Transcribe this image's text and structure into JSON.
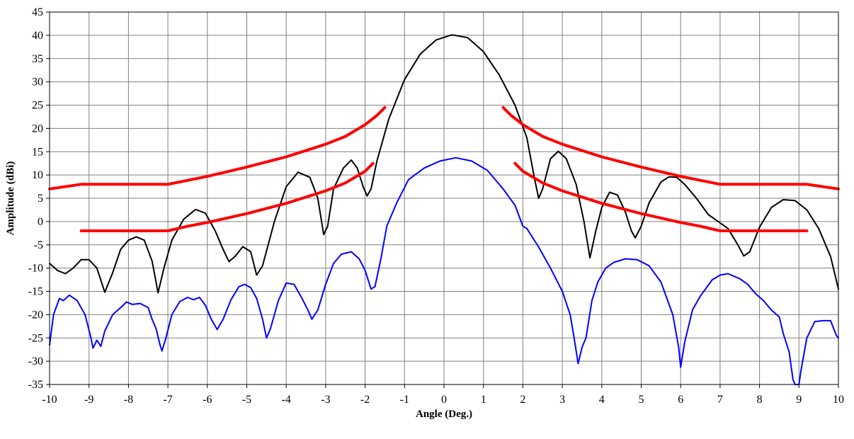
{
  "chart_data": {
    "type": "line",
    "title": "",
    "xlabel": "Angle (Deg.)",
    "ylabel": "Amplitude (dBi)",
    "xlim": [
      -10,
      10
    ],
    "ylim": [
      -35,
      45
    ],
    "x_ticks": [
      "-10",
      "-9",
      "-8",
      "-7",
      "-6",
      "-5",
      "-4",
      "-3",
      "-2",
      "-1",
      "0",
      "1",
      "2",
      "3",
      "4",
      "5",
      "6",
      "7",
      "8",
      "9",
      "10"
    ],
    "y_ticks": [
      "45",
      "40",
      "35",
      "30",
      "25",
      "20",
      "15",
      "10",
      "5",
      "0",
      "-5",
      "-10",
      "-15",
      "-20",
      "-25",
      "-30",
      "-35"
    ],
    "grid": true,
    "legend": "none",
    "series": [
      {
        "color": "#000000",
        "width": 2,
        "points": [
          [
            -10,
            -9
          ],
          [
            -9.8,
            -10.5
          ],
          [
            -9.6,
            -11.2
          ],
          [
            -9.4,
            -10
          ],
          [
            -9.2,
            -8.2
          ],
          [
            -9.0,
            -8.2
          ],
          [
            -8.8,
            -10
          ],
          [
            -8.6,
            -15.2
          ],
          [
            -8.4,
            -11
          ],
          [
            -8.2,
            -6
          ],
          [
            -8.0,
            -4
          ],
          [
            -7.8,
            -3.3
          ],
          [
            -7.6,
            -4
          ],
          [
            -7.4,
            -8.5
          ],
          [
            -7.25,
            -15.3
          ],
          [
            -7.1,
            -10
          ],
          [
            -6.9,
            -4
          ],
          [
            -6.6,
            0.5
          ],
          [
            -6.3,
            2.6
          ],
          [
            -6.05,
            1.8
          ],
          [
            -5.8,
            -2
          ],
          [
            -5.6,
            -6
          ],
          [
            -5.45,
            -8.6
          ],
          [
            -5.3,
            -7.5
          ],
          [
            -5.1,
            -5.4
          ],
          [
            -4.9,
            -6.5
          ],
          [
            -4.75,
            -11.5
          ],
          [
            -4.6,
            -9.5
          ],
          [
            -4.3,
            0
          ],
          [
            -4.0,
            7.5
          ],
          [
            -3.7,
            10.6
          ],
          [
            -3.4,
            9.5
          ],
          [
            -3.2,
            5
          ],
          [
            -3.05,
            -2.8
          ],
          [
            -2.95,
            -1
          ],
          [
            -2.8,
            7
          ],
          [
            -2.55,
            11.5
          ],
          [
            -2.35,
            13.2
          ],
          [
            -2.2,
            11.5
          ],
          [
            -2.05,
            7.5
          ],
          [
            -1.95,
            5.5
          ],
          [
            -1.85,
            7
          ],
          [
            -1.7,
            13
          ],
          [
            -1.4,
            22
          ],
          [
            -1.0,
            30.5
          ],
          [
            -0.6,
            36
          ],
          [
            -0.2,
            39
          ],
          [
            0.2,
            40.1
          ],
          [
            0.6,
            39.5
          ],
          [
            1.0,
            36.5
          ],
          [
            1.4,
            31.5
          ],
          [
            1.8,
            25
          ],
          [
            2.1,
            18
          ],
          [
            2.3,
            9
          ],
          [
            2.4,
            5
          ],
          [
            2.5,
            7
          ],
          [
            2.7,
            13.5
          ],
          [
            2.9,
            15.1
          ],
          [
            3.1,
            13.5
          ],
          [
            3.35,
            8
          ],
          [
            3.55,
            0
          ],
          [
            3.7,
            -7.8
          ],
          [
            3.85,
            -2
          ],
          [
            4.0,
            3
          ],
          [
            4.2,
            6.3
          ],
          [
            4.4,
            5.7
          ],
          [
            4.6,
            2
          ],
          [
            4.75,
            -2
          ],
          [
            4.85,
            -3.5
          ],
          [
            5.0,
            -1
          ],
          [
            5.2,
            4
          ],
          [
            5.5,
            8.5
          ],
          [
            5.7,
            9.6
          ],
          [
            5.9,
            9.5
          ],
          [
            6.1,
            8
          ],
          [
            6.4,
            5
          ],
          [
            6.7,
            1.5
          ],
          [
            7.0,
            -0.3
          ],
          [
            7.2,
            -1.5
          ],
          [
            7.45,
            -5
          ],
          [
            7.6,
            -7.4
          ],
          [
            7.75,
            -6.5
          ],
          [
            8.0,
            -1.2
          ],
          [
            8.3,
            3
          ],
          [
            8.6,
            4.7
          ],
          [
            8.9,
            4.5
          ],
          [
            9.2,
            2.5
          ],
          [
            9.5,
            -1.5
          ],
          [
            9.8,
            -7.5
          ],
          [
            10,
            -14.5
          ]
        ]
      },
      {
        "color": "#0000ff",
        "width": 2,
        "points": [
          [
            -10,
            -26.5
          ],
          [
            -9.9,
            -20
          ],
          [
            -9.75,
            -16.5
          ],
          [
            -9.65,
            -17
          ],
          [
            -9.5,
            -15.8
          ],
          [
            -9.3,
            -17
          ],
          [
            -9.1,
            -20
          ],
          [
            -8.95,
            -25
          ],
          [
            -8.9,
            -27.2
          ],
          [
            -8.8,
            -25.5
          ],
          [
            -8.7,
            -26.8
          ],
          [
            -8.6,
            -23.5
          ],
          [
            -8.4,
            -20
          ],
          [
            -8.2,
            -18.5
          ],
          [
            -8.05,
            -17.3
          ],
          [
            -7.9,
            -17.8
          ],
          [
            -7.7,
            -17.6
          ],
          [
            -7.5,
            -18.5
          ],
          [
            -7.4,
            -21
          ],
          [
            -7.3,
            -23
          ],
          [
            -7.2,
            -26.5
          ],
          [
            -7.15,
            -27.8
          ],
          [
            -7.05,
            -25
          ],
          [
            -6.9,
            -20
          ],
          [
            -6.7,
            -17.2
          ],
          [
            -6.5,
            -16.3
          ],
          [
            -6.35,
            -16.8
          ],
          [
            -6.2,
            -16.3
          ],
          [
            -6.05,
            -18
          ],
          [
            -5.9,
            -21
          ],
          [
            -5.75,
            -23.2
          ],
          [
            -5.6,
            -21
          ],
          [
            -5.4,
            -16.8
          ],
          [
            -5.2,
            -14
          ],
          [
            -5.05,
            -13.5
          ],
          [
            -4.9,
            -14.2
          ],
          [
            -4.75,
            -16.5
          ],
          [
            -4.6,
            -21
          ],
          [
            -4.5,
            -25
          ],
          [
            -4.4,
            -23
          ],
          [
            -4.2,
            -17
          ],
          [
            -4.0,
            -13.2
          ],
          [
            -3.8,
            -13.5
          ],
          [
            -3.6,
            -16.5
          ],
          [
            -3.45,
            -19
          ],
          [
            -3.35,
            -21
          ],
          [
            -3.2,
            -19
          ],
          [
            -3.0,
            -13.5
          ],
          [
            -2.8,
            -9
          ],
          [
            -2.6,
            -7
          ],
          [
            -2.35,
            -6.5
          ],
          [
            -2.15,
            -8
          ],
          [
            -2.0,
            -10.5
          ],
          [
            -1.85,
            -14.5
          ],
          [
            -1.75,
            -14
          ],
          [
            -1.6,
            -8
          ],
          [
            -1.45,
            -1
          ],
          [
            -1.2,
            4
          ],
          [
            -0.9,
            9
          ],
          [
            -0.5,
            11.5
          ],
          [
            -0.1,
            13
          ],
          [
            0.3,
            13.7
          ],
          [
            0.7,
            13
          ],
          [
            1.1,
            11
          ],
          [
            1.5,
            7
          ],
          [
            1.8,
            3.5
          ],
          [
            2.0,
            -1
          ],
          [
            2.1,
            -1.5
          ],
          [
            2.4,
            -5.5
          ],
          [
            2.7,
            -10
          ],
          [
            3.0,
            -15
          ],
          [
            3.2,
            -20
          ],
          [
            3.3,
            -25
          ],
          [
            3.4,
            -30.5
          ],
          [
            3.5,
            -27
          ],
          [
            3.6,
            -25
          ],
          [
            3.75,
            -17
          ],
          [
            3.9,
            -13
          ],
          [
            4.1,
            -10
          ],
          [
            4.3,
            -8.8
          ],
          [
            4.6,
            -8
          ],
          [
            4.9,
            -8.2
          ],
          [
            5.2,
            -9.5
          ],
          [
            5.5,
            -13
          ],
          [
            5.8,
            -20
          ],
          [
            5.95,
            -27
          ],
          [
            6.0,
            -31.3
          ],
          [
            6.1,
            -26
          ],
          [
            6.3,
            -19
          ],
          [
            6.5,
            -16
          ],
          [
            6.8,
            -12.5
          ],
          [
            7.0,
            -11.5
          ],
          [
            7.2,
            -11.2
          ],
          [
            7.5,
            -12.3
          ],
          [
            7.7,
            -13.5
          ],
          [
            7.9,
            -15.5
          ],
          [
            8.1,
            -17
          ],
          [
            8.3,
            -19
          ],
          [
            8.5,
            -20.5
          ],
          [
            8.6,
            -24
          ],
          [
            8.75,
            -28
          ],
          [
            8.85,
            -34
          ],
          [
            8.9,
            -35
          ],
          [
            9.0,
            -35
          ],
          [
            9.05,
            -32
          ],
          [
            9.2,
            -25
          ],
          [
            9.4,
            -21.5
          ],
          [
            9.6,
            -21.3
          ],
          [
            9.8,
            -21.3
          ],
          [
            9.95,
            -24.5
          ],
          [
            10,
            -25
          ]
        ]
      },
      {
        "color": "#ff0000",
        "width": 4,
        "points": [
          [
            -10,
            7
          ],
          [
            -9.2,
            8
          ],
          [
            -7.5,
            8
          ],
          [
            -7.0,
            8
          ],
          [
            -6.0,
            9.7
          ],
          [
            -5.0,
            11.7
          ],
          [
            -4.0,
            13.9
          ],
          [
            -3.0,
            16.6
          ],
          [
            -2.5,
            18.3
          ],
          [
            -2.0,
            20.8
          ],
          [
            -1.7,
            22.8
          ],
          [
            -1.5,
            24.5
          ]
        ]
      },
      {
        "color": "#ff0000",
        "width": 4,
        "points": [
          [
            1.5,
            24.5
          ],
          [
            1.7,
            22.8
          ],
          [
            2.0,
            20.8
          ],
          [
            2.5,
            18.3
          ],
          [
            3.0,
            16.6
          ],
          [
            4.0,
            13.9
          ],
          [
            5.0,
            11.7
          ],
          [
            6.0,
            9.7
          ],
          [
            7.0,
            8
          ],
          [
            7.5,
            8
          ],
          [
            9.2,
            8
          ],
          [
            10,
            7
          ]
        ]
      },
      {
        "color": "#ff0000",
        "width": 4,
        "points": [
          [
            -9.2,
            -2
          ],
          [
            -7.5,
            -2
          ],
          [
            -7.0,
            -2
          ],
          [
            -6.5,
            -1
          ],
          [
            -6.0,
            -0.2
          ],
          [
            -5.0,
            1.7
          ],
          [
            -4.0,
            3.9
          ],
          [
            -3.0,
            6.6
          ],
          [
            -2.5,
            8.3
          ],
          [
            -2.0,
            10.8
          ],
          [
            -1.8,
            12.5
          ]
        ]
      },
      {
        "color": "#ff0000",
        "width": 4,
        "points": [
          [
            1.8,
            12.5
          ],
          [
            2.0,
            10.8
          ],
          [
            2.5,
            8.3
          ],
          [
            3.0,
            6.6
          ],
          [
            4.0,
            3.9
          ],
          [
            5.0,
            1.7
          ],
          [
            6.0,
            -0.2
          ],
          [
            6.5,
            -1
          ],
          [
            7.0,
            -2
          ],
          [
            7.5,
            -2
          ],
          [
            9.2,
            -2
          ]
        ]
      }
    ]
  }
}
